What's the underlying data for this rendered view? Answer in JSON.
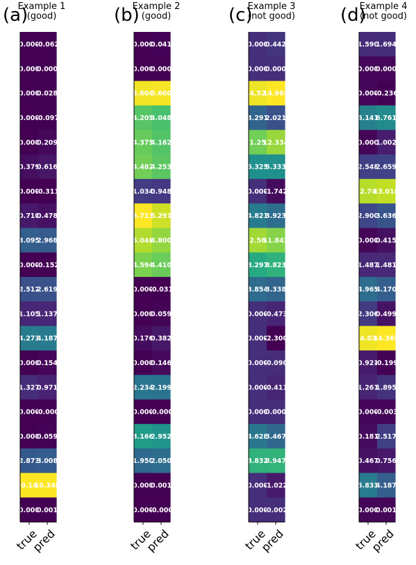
{
  "chart_data": [
    {
      "type": "heatmap",
      "panel_label": "(a)",
      "title_line1": "Example 1",
      "title_line2": "(good)",
      "columns": [
        "true",
        "pred"
      ],
      "colormap": "viridis",
      "vmin": 0,
      "vmax": 10.145,
      "rows": [
        [
          0.0,
          -0.062
        ],
        [
          0.0,
          0.0
        ],
        [
          0.0,
          0.028
        ],
        [
          0.0,
          -0.097
        ],
        [
          0.0,
          0.209
        ],
        [
          0.379,
          0.616
        ],
        [
          0.0,
          -0.311
        ],
        [
          0.71,
          0.478
        ],
        [
          3.095,
          2.968
        ],
        [
          0.0,
          -0.152
        ],
        [
          2.512,
          2.619
        ],
        [
          1.105,
          1.137
        ],
        [
          4.273,
          4.187
        ],
        [
          0.0,
          0.154
        ],
        [
          1.327,
          0.971
        ],
        [
          0.0,
          -0.0
        ],
        [
          0.0,
          0.059
        ],
        [
          2.873,
          3.008
        ],
        [
          10.145,
          10.34
        ],
        [
          0.0,
          0.001
        ]
      ]
    },
    {
      "type": "heatmap",
      "panel_label": "(b)",
      "title_line1": "Example 2",
      "title_line2": "(good)",
      "columns": [
        "true",
        "pred"
      ],
      "colormap": "viridis",
      "vmin": 0,
      "vmax": 5.713,
      "rows": [
        [
          0.0,
          0.041
        ],
        [
          0.0,
          0.0
        ],
        [
          5.604,
          5.66
        ],
        [
          4.205,
          4.048
        ],
        [
          4.375,
          4.162
        ],
        [
          4.482,
          4.253
        ],
        [
          1.034,
          0.948
        ],
        [
          5.713,
          5.291
        ],
        [
          5.048,
          4.8
        ],
        [
          4.594,
          4.41
        ],
        [
          0.0,
          -0.031
        ],
        [
          0.0,
          0.059
        ],
        [
          0.176,
          0.382
        ],
        [
          0.0,
          0.146
        ],
        [
          2.234,
          2.199
        ],
        [
          0.0,
          -0.0
        ],
        [
          3.166,
          2.952
        ],
        [
          1.95,
          2.05
        ],
        [
          0.0,
          0.001
        ],
        [
          0.0,
          -0.0
        ]
      ]
    },
    {
      "type": "heatmap",
      "panel_label": "(c)",
      "title_line1": "Example 3",
      "title_line2": "(not good)",
      "columns": [
        "true",
        "pred"
      ],
      "colormap": "viridis",
      "vmin": -2.3,
      "vmax": 14.964,
      "rows": [
        [
          0.0,
          0.442
        ],
        [
          0.0,
          0.0
        ],
        [
          14.523,
          14.964
        ],
        [
          3.291,
          2.021
        ],
        [
          11.253,
          12.334
        ],
        [
          6.325,
          6.333
        ],
        [
          0.0,
          -1.742
        ],
        [
          4.821,
          3.923
        ],
        [
          12.564,
          11.842
        ],
        [
          8.297,
          8.823
        ],
        [
          3.854,
          3.338
        ],
        [
          0.0,
          -0.473
        ],
        [
          0.0,
          -2.3
        ],
        [
          0.0,
          -0.09
        ],
        [
          0.0,
          -0.411
        ],
        [
          0.0,
          0.0
        ],
        [
          4.628,
          3.467
        ],
        [
          8.832,
          8.947
        ],
        [
          0.0,
          -1.022
        ],
        [
          0.0,
          -0.002
        ]
      ]
    },
    {
      "type": "heatmap",
      "panel_label": "(d)",
      "title_line1": "Example 4",
      "title_line2": "(not good)",
      "columns": [
        "true",
        "pred"
      ],
      "colormap": "viridis",
      "vmin": -0.236,
      "vmax": 14.365,
      "rows": [
        [
          1.59,
          1.694
        ],
        [
          0.0,
          0.0
        ],
        [
          0.0,
          -0.236
        ],
        [
          6.141,
          6.761
        ],
        [
          0.0,
          1.002
        ],
        [
          2.548,
          2.659
        ],
        [
          12.749,
          13.018
        ],
        [
          2.9,
          3.636
        ],
        [
          0.0,
          0.415
        ],
        [
          1.487,
          1.481
        ],
        [
          4.965,
          4.17
        ],
        [
          2.306,
          0.499
        ],
        [
          14.03,
          14.365
        ],
        [
          0.921,
          -0.199
        ],
        [
          1.261,
          1.895
        ],
        [
          0.0,
          -0.003
        ],
        [
          0.181,
          2.517
        ],
        [
          0.467,
          0.756
        ],
        [
          5.833,
          4.187
        ],
        [
          0.0,
          0.001
        ]
      ]
    }
  ]
}
